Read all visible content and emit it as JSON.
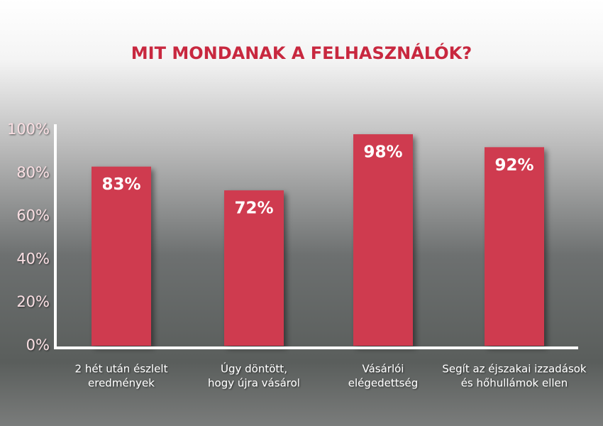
{
  "chart_data": {
    "type": "bar",
    "title": "MIT MONDANAK A FELHASZNÁLÓK?",
    "categories": [
      [
        "2 hét után észlelt",
        "eredmények"
      ],
      [
        "Úgy döntött,",
        "hogy újra vásárol"
      ],
      [
        "Vásárlói",
        "elégedettség"
      ],
      [
        "Segít az éjszakai izzadások",
        "és hőhullámok ellen"
      ]
    ],
    "values": [
      83,
      72,
      98,
      92
    ],
    "value_labels": [
      "83%",
      "72%",
      "98%",
      "92%"
    ],
    "color": "#cf3a4f",
    "ylim": [
      0,
      100
    ],
    "yticks": [
      {
        "value": 0,
        "label": "0%"
      },
      {
        "value": 20,
        "label": "20%"
      },
      {
        "value": 40,
        "label": "40%"
      },
      {
        "value": 60,
        "label": "60%"
      },
      {
        "value": 80,
        "label": "80%"
      },
      {
        "value": 100,
        "label": "100%"
      }
    ]
  }
}
